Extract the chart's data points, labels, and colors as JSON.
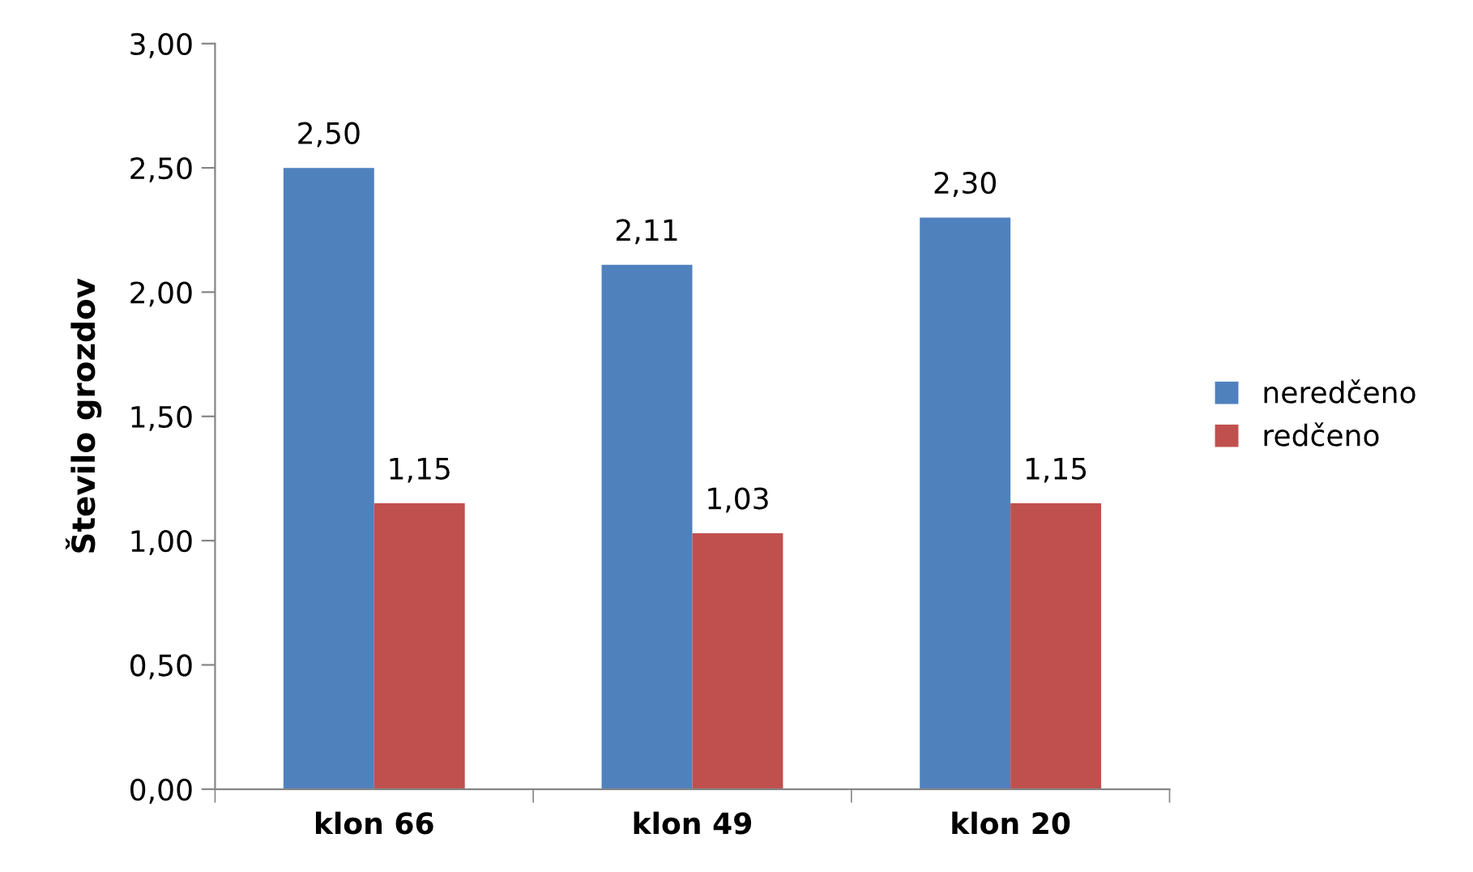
{
  "chart_data": {
    "type": "bar",
    "ylabel": "Število grozdov",
    "categories": [
      "klon 66",
      "klon 49",
      "klon 20"
    ],
    "series": [
      {
        "name": "neredčeno",
        "color": "#4f81bd",
        "values": [
          2.5,
          2.11,
          2.3
        ],
        "value_labels": [
          "2,50",
          "2,11",
          "2,30"
        ]
      },
      {
        "name": "redčeno",
        "color": "#c0504d",
        "values": [
          1.15,
          1.03,
          1.15
        ],
        "value_labels": [
          "1,15",
          "1,03",
          "1,15"
        ]
      }
    ],
    "ylim": [
      0,
      3
    ],
    "yticks": [
      {
        "value": 0,
        "label": "0,00"
      },
      {
        "value": 0.5,
        "label": "0,50"
      },
      {
        "value": 1,
        "label": "1,00"
      },
      {
        "value": 1.5,
        "label": "1,50"
      },
      {
        "value": 2,
        "label": "2,00"
      },
      {
        "value": 2.5,
        "label": "2,50"
      },
      {
        "value": 3,
        "label": "3,00"
      }
    ],
    "grid": false,
    "legend": "right"
  }
}
